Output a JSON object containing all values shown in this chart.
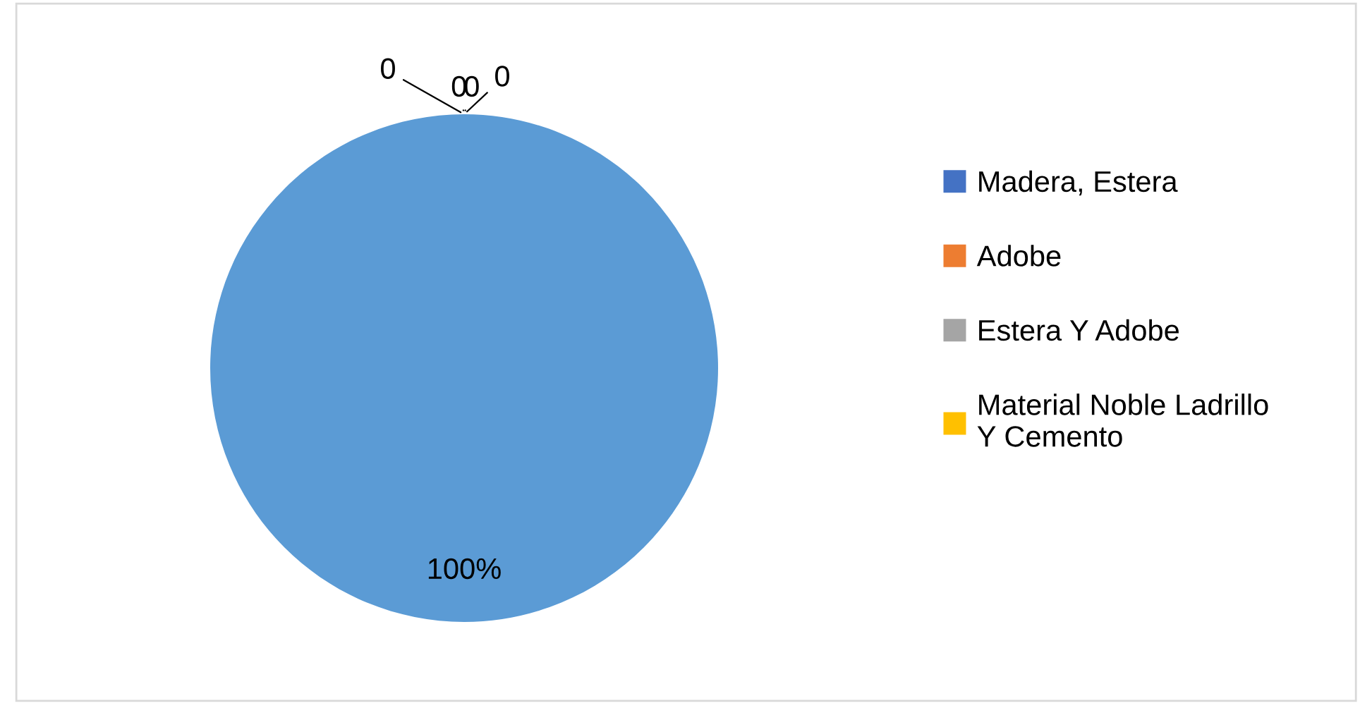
{
  "chart_data": {
    "type": "pie",
    "categories": [
      "Madera, Estera",
      "Adobe",
      "Estera Y Adobe",
      "Material Noble Ladrillo Y Cemento",
      null
    ],
    "values": [
      0,
      0,
      0,
      0,
      100
    ],
    "colors": [
      "#4472c4",
      "#ed7d31",
      "#a5a5a5",
      "#ffc000",
      "#5b9bd5"
    ],
    "value_labels": [
      "0",
      "0",
      "0",
      "0",
      "100%"
    ],
    "legend": "right"
  }
}
